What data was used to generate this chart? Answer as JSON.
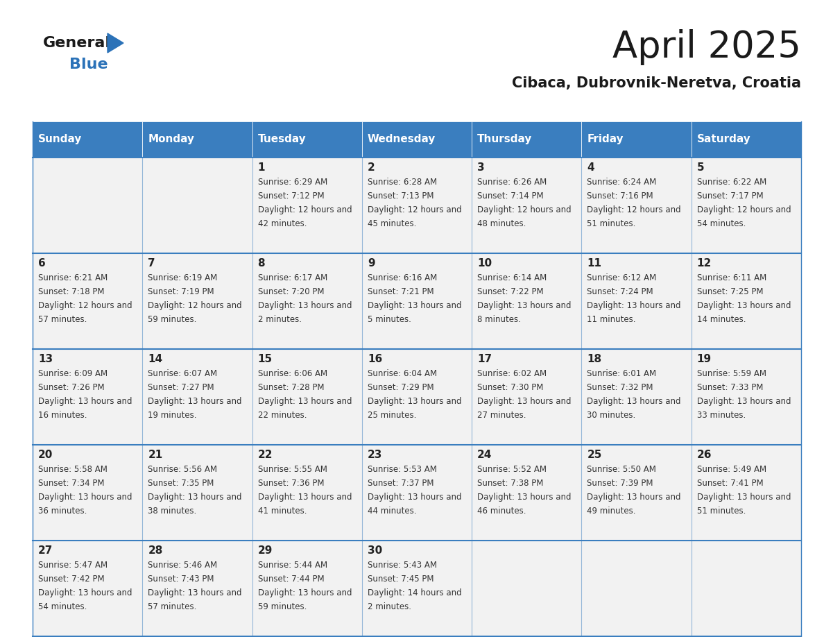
{
  "title": "April 2025",
  "subtitle": "Cibaca, Dubrovnik-Neretva, Croatia",
  "days_of_week": [
    "Sunday",
    "Monday",
    "Tuesday",
    "Wednesday",
    "Thursday",
    "Friday",
    "Saturday"
  ],
  "header_bg": "#3a7ebf",
  "header_text": "#ffffff",
  "cell_bg": "#f2f2f2",
  "border_color": "#3a7ebf",
  "cell_border_color": "#3a7ebf",
  "text_color": "#333333",
  "title_color": "#1a1a1a",
  "logo_black": "#1a1a1a",
  "logo_blue": "#2b72b8",
  "calendar_data": [
    [
      {
        "day": "",
        "sunrise": "",
        "sunset": "",
        "daylight": ""
      },
      {
        "day": "",
        "sunrise": "",
        "sunset": "",
        "daylight": ""
      },
      {
        "day": "1",
        "sunrise": "6:29 AM",
        "sunset": "7:12 PM",
        "daylight": "12 hours and 42 minutes."
      },
      {
        "day": "2",
        "sunrise": "6:28 AM",
        "sunset": "7:13 PM",
        "daylight": "12 hours and 45 minutes."
      },
      {
        "day": "3",
        "sunrise": "6:26 AM",
        "sunset": "7:14 PM",
        "daylight": "12 hours and 48 minutes."
      },
      {
        "day": "4",
        "sunrise": "6:24 AM",
        "sunset": "7:16 PM",
        "daylight": "12 hours and 51 minutes."
      },
      {
        "day": "5",
        "sunrise": "6:22 AM",
        "sunset": "7:17 PM",
        "daylight": "12 hours and 54 minutes."
      }
    ],
    [
      {
        "day": "6",
        "sunrise": "6:21 AM",
        "sunset": "7:18 PM",
        "daylight": "12 hours and 57 minutes."
      },
      {
        "day": "7",
        "sunrise": "6:19 AM",
        "sunset": "7:19 PM",
        "daylight": "12 hours and 59 minutes."
      },
      {
        "day": "8",
        "sunrise": "6:17 AM",
        "sunset": "7:20 PM",
        "daylight": "13 hours and 2 minutes."
      },
      {
        "day": "9",
        "sunrise": "6:16 AM",
        "sunset": "7:21 PM",
        "daylight": "13 hours and 5 minutes."
      },
      {
        "day": "10",
        "sunrise": "6:14 AM",
        "sunset": "7:22 PM",
        "daylight": "13 hours and 8 minutes."
      },
      {
        "day": "11",
        "sunrise": "6:12 AM",
        "sunset": "7:24 PM",
        "daylight": "13 hours and 11 minutes."
      },
      {
        "day": "12",
        "sunrise": "6:11 AM",
        "sunset": "7:25 PM",
        "daylight": "13 hours and 14 minutes."
      }
    ],
    [
      {
        "day": "13",
        "sunrise": "6:09 AM",
        "sunset": "7:26 PM",
        "daylight": "13 hours and 16 minutes."
      },
      {
        "day": "14",
        "sunrise": "6:07 AM",
        "sunset": "7:27 PM",
        "daylight": "13 hours and 19 minutes."
      },
      {
        "day": "15",
        "sunrise": "6:06 AM",
        "sunset": "7:28 PM",
        "daylight": "13 hours and 22 minutes."
      },
      {
        "day": "16",
        "sunrise": "6:04 AM",
        "sunset": "7:29 PM",
        "daylight": "13 hours and 25 minutes."
      },
      {
        "day": "17",
        "sunrise": "6:02 AM",
        "sunset": "7:30 PM",
        "daylight": "13 hours and 27 minutes."
      },
      {
        "day": "18",
        "sunrise": "6:01 AM",
        "sunset": "7:32 PM",
        "daylight": "13 hours and 30 minutes."
      },
      {
        "day": "19",
        "sunrise": "5:59 AM",
        "sunset": "7:33 PM",
        "daylight": "13 hours and 33 minutes."
      }
    ],
    [
      {
        "day": "20",
        "sunrise": "5:58 AM",
        "sunset": "7:34 PM",
        "daylight": "13 hours and 36 minutes."
      },
      {
        "day": "21",
        "sunrise": "5:56 AM",
        "sunset": "7:35 PM",
        "daylight": "13 hours and 38 minutes."
      },
      {
        "day": "22",
        "sunrise": "5:55 AM",
        "sunset": "7:36 PM",
        "daylight": "13 hours and 41 minutes."
      },
      {
        "day": "23",
        "sunrise": "5:53 AM",
        "sunset": "7:37 PM",
        "daylight": "13 hours and 44 minutes."
      },
      {
        "day": "24",
        "sunrise": "5:52 AM",
        "sunset": "7:38 PM",
        "daylight": "13 hours and 46 minutes."
      },
      {
        "day": "25",
        "sunrise": "5:50 AM",
        "sunset": "7:39 PM",
        "daylight": "13 hours and 49 minutes."
      },
      {
        "day": "26",
        "sunrise": "5:49 AM",
        "sunset": "7:41 PM",
        "daylight": "13 hours and 51 minutes."
      }
    ],
    [
      {
        "day": "27",
        "sunrise": "5:47 AM",
        "sunset": "7:42 PM",
        "daylight": "13 hours and 54 minutes."
      },
      {
        "day": "28",
        "sunrise": "5:46 AM",
        "sunset": "7:43 PM",
        "daylight": "13 hours and 57 minutes."
      },
      {
        "day": "29",
        "sunrise": "5:44 AM",
        "sunset": "7:44 PM",
        "daylight": "13 hours and 59 minutes."
      },
      {
        "day": "30",
        "sunrise": "5:43 AM",
        "sunset": "7:45 PM",
        "daylight": "14 hours and 2 minutes."
      },
      {
        "day": "",
        "sunrise": "",
        "sunset": "",
        "daylight": ""
      },
      {
        "day": "",
        "sunrise": "",
        "sunset": "",
        "daylight": ""
      },
      {
        "day": "",
        "sunrise": "",
        "sunset": "",
        "daylight": ""
      }
    ]
  ]
}
